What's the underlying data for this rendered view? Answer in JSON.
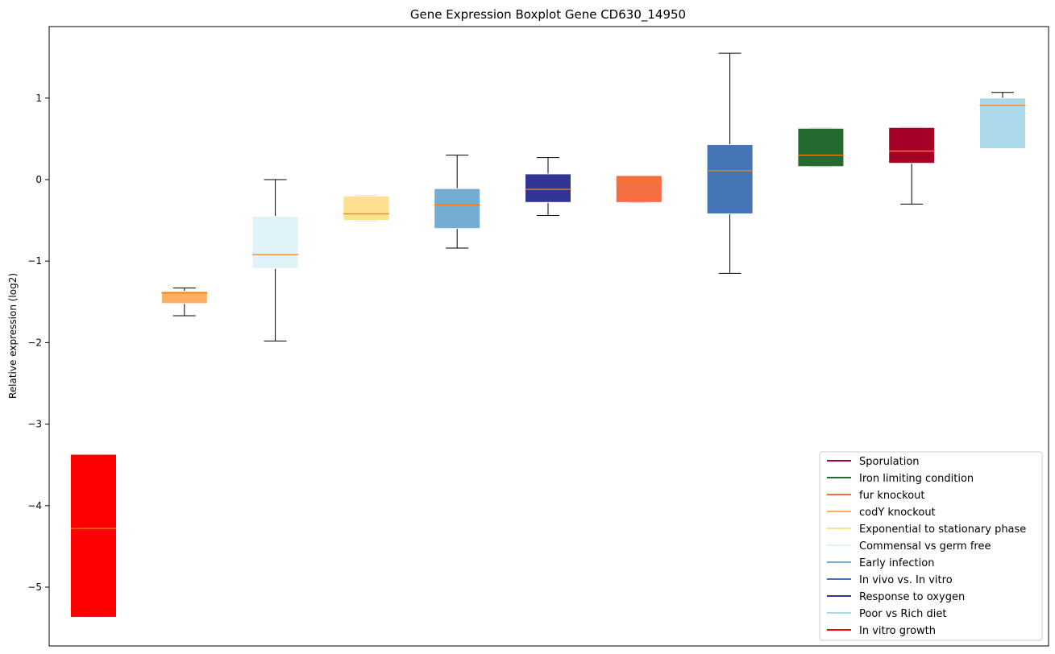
{
  "chart_data": {
    "type": "boxplot",
    "title": "Gene Expression Boxplot Gene CD630_14950",
    "xlabel": "",
    "ylabel": "Relative expression (log2)",
    "ylim": [
      -5.7,
      1.88
    ],
    "yticks": [
      1,
      0,
      -1,
      -2,
      -3,
      -4,
      -5
    ],
    "ytick_labels": [
      "1",
      "0",
      "−1",
      "−2",
      "−3",
      "−4",
      "−5"
    ],
    "grid": false,
    "legend_position": "lower-right",
    "median_color": "#ff7f0e",
    "boxes": [
      {
        "name": "In vitro growth",
        "color": "#ff0000",
        "whislo": -5.37,
        "q1": -5.37,
        "med": -4.28,
        "q3": -3.37,
        "whishi": -3.37
      },
      {
        "name": "codY knockout",
        "color": "#fdae61",
        "whislo": -1.67,
        "q1": -1.52,
        "med": -1.39,
        "q3": -1.37,
        "whishi": -1.33
      },
      {
        "name": "Commensal vs germ free",
        "color": "#e0f3f8",
        "whislo": -1.98,
        "q1": -1.09,
        "med": -0.92,
        "q3": -0.45,
        "whishi": 0.0
      },
      {
        "name": "Exponential to stationary phase",
        "color": "#fee090",
        "whislo": -0.5,
        "q1": -0.5,
        "med": -0.42,
        "q3": -0.2,
        "whishi": -0.2
      },
      {
        "name": "Early infection",
        "color": "#74add1",
        "whislo": -0.84,
        "q1": -0.6,
        "med": -0.31,
        "q3": -0.11,
        "whishi": 0.3
      },
      {
        "name": "Response to oxygen",
        "color": "#313695",
        "whislo": -0.44,
        "q1": -0.28,
        "med": -0.12,
        "q3": 0.07,
        "whishi": 0.27
      },
      {
        "name": "fur knockout",
        "color": "#f46d43",
        "whislo": -0.28,
        "q1": -0.28,
        "med": -0.01,
        "q3": 0.05,
        "whishi": 0.05
      },
      {
        "name": "In vivo vs. In vitro",
        "color": "#4575b4",
        "whislo": -1.15,
        "q1": -0.42,
        "med": 0.11,
        "q3": 0.43,
        "whishi": 1.55
      },
      {
        "name": "Iron limiting condition",
        "color": "#246a2e",
        "whislo": 0.16,
        "q1": 0.16,
        "med": 0.3,
        "q3": 0.63,
        "whishi": 0.63
      },
      {
        "name": "Sporulation",
        "color": "#a50026",
        "whislo": -0.3,
        "q1": 0.2,
        "med": 0.35,
        "q3": 0.64,
        "whishi": 0.64
      },
      {
        "name": "Poor vs Rich diet",
        "color": "#abd9e9",
        "whislo": 0.38,
        "q1": 0.38,
        "med": 0.91,
        "q3": 1.0,
        "whishi": 1.07
      }
    ],
    "legend": [
      {
        "label": "Sporulation",
        "color": "#a50026"
      },
      {
        "label": "Iron limiting condition",
        "color": "#246a2e"
      },
      {
        "label": "fur knockout",
        "color": "#f46d43"
      },
      {
        "label": "codY knockout",
        "color": "#fdae61"
      },
      {
        "label": "Exponential to stationary phase",
        "color": "#fee090"
      },
      {
        "label": "Commensal vs germ free",
        "color": "#e0f3f8"
      },
      {
        "label": "Early infection",
        "color": "#74add1"
      },
      {
        "label": "In vivo vs. In vitro",
        "color": "#4575b4"
      },
      {
        "label": "Response to oxygen",
        "color": "#313695"
      },
      {
        "label": "Poor vs Rich diet",
        "color": "#abd9e9"
      },
      {
        "label": "In vitro growth",
        "color": "#ff0000"
      }
    ]
  }
}
